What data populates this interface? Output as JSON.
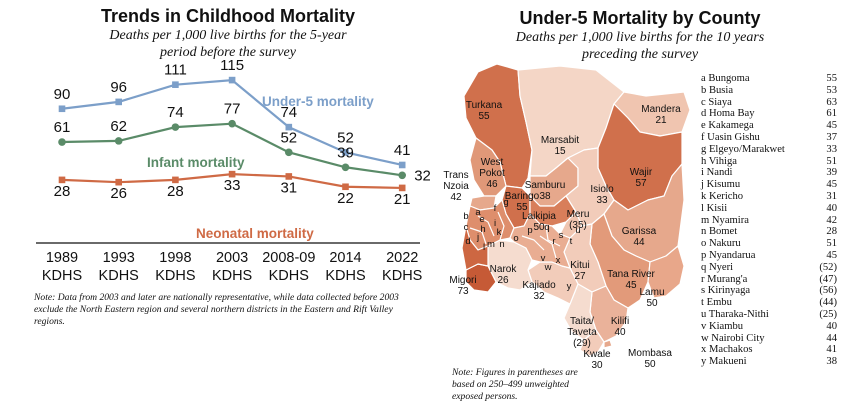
{
  "left_chart": {
    "title": "Trends in Childhood Mortality",
    "subtitle_line1": "Deaths per 1,000 live births for the 5-year",
    "subtitle_line2": "period before the survey",
    "note": "Note: Data from 2003 and later are nationally representative, while data collected before 2003 exclude the North Eastern region and several northern districts in the Eastern and Rift Valley regions."
  },
  "right_chart": {
    "title": "Under-5 Mortality by County",
    "subtitle_line1": "Deaths per 1,000 live births for the 10 years",
    "subtitle_line2": "preceding the survey",
    "note_line1": "Note: Figures in parentheses are",
    "note_line2": "based on 250–499 unweighted",
    "note_line3": "exposed persons."
  },
  "chart_data": [
    {
      "type": "line",
      "title": "Trends in Childhood Mortality",
      "categories": [
        {
          "year": "1989",
          "survey": "KDHS"
        },
        {
          "year": "1993",
          "survey": "KDHS"
        },
        {
          "year": "1998",
          "survey": "KDHS"
        },
        {
          "year": "2003",
          "survey": "KDHS"
        },
        {
          "year": "2008-09",
          "survey": "KDHS"
        },
        {
          "year": "2014",
          "survey": "KDHS"
        },
        {
          "year": "2022",
          "survey": "KDHS"
        }
      ],
      "series": [
        {
          "name": "Under-5 mortality",
          "color": "#7c9fc9",
          "values": [
            90,
            96,
            111,
            115,
            74,
            52,
            41
          ]
        },
        {
          "name": "Infant mortality",
          "color": "#5a8b68",
          "values": [
            61,
            62,
            74,
            77,
            52,
            39,
            32
          ]
        },
        {
          "name": "Neonatal mortality",
          "color": "#cf6a45",
          "values": [
            28,
            26,
            28,
            33,
            31,
            22,
            21
          ]
        }
      ],
      "ylim": [
        0,
        125
      ]
    },
    {
      "type": "choropleth-map",
      "title": "Under-5 Mortality by County",
      "map_labels": [
        {
          "name": "Turkana",
          "value": "55"
        },
        {
          "name": "Marsabit",
          "value": "15"
        },
        {
          "name": "Mandera",
          "value": "21"
        },
        {
          "name": "Wajir",
          "value": "57"
        },
        {
          "name": "West Pokot",
          "value": "46"
        },
        {
          "name": "Trans Nzoia",
          "value": "42"
        },
        {
          "name": "Samburu",
          "value": "38"
        },
        {
          "name": "Baringo",
          "value": "55"
        },
        {
          "name": "Isiolo",
          "value": "33"
        },
        {
          "name": "Laikipia",
          "value": "50"
        },
        {
          "name": "Meru",
          "value": "(35)"
        },
        {
          "name": "Garissa",
          "value": "44"
        },
        {
          "name": "Narok",
          "value": "26"
        },
        {
          "name": "Kitui",
          "value": "27"
        },
        {
          "name": "Kajiado",
          "value": "32"
        },
        {
          "name": "Migori",
          "value": "73"
        },
        {
          "name": "Tana River",
          "value": "45"
        },
        {
          "name": "Lamu",
          "value": "50"
        },
        {
          "name": "Taita/ Taveta",
          "value": "(29)"
        },
        {
          "name": "Kilifi",
          "value": "40"
        },
        {
          "name": "Kwale",
          "value": "30"
        },
        {
          "name": "Mombasa",
          "value": "50"
        }
      ],
      "letters": [
        "a",
        "b",
        "c",
        "d",
        "e",
        "f",
        "g",
        "h",
        "i",
        "j",
        "k",
        "l",
        "m",
        "n",
        "o",
        "p",
        "q",
        "r",
        "s",
        "t",
        "u",
        "v",
        "w",
        "x",
        "y"
      ],
      "legend": [
        {
          "label": "a Bungoma",
          "value": "55"
        },
        {
          "label": "b Busia",
          "value": "53"
        },
        {
          "label": "c Siaya",
          "value": "63"
        },
        {
          "label": "d Homa Bay",
          "value": "61"
        },
        {
          "label": "e Kakamega",
          "value": "45"
        },
        {
          "label": "f Uasin Gishu",
          "value": "37"
        },
        {
          "label": "g Elgeyo/Marakwet",
          "value": "33"
        },
        {
          "label": "h Vihiga",
          "value": "51"
        },
        {
          "label": "i Nandi",
          "value": "39"
        },
        {
          "label": "j Kisumu",
          "value": "45"
        },
        {
          "label": "k Kericho",
          "value": "31"
        },
        {
          "label": "l Kisii",
          "value": "40"
        },
        {
          "label": "m Nyamira",
          "value": "42"
        },
        {
          "label": "n Bomet",
          "value": "28"
        },
        {
          "label": "o Nakuru",
          "value": "51"
        },
        {
          "label": "p Nyandarua",
          "value": "45"
        },
        {
          "label": "q Nyeri",
          "value": "(52)"
        },
        {
          "label": "r Murang'a",
          "value": "(47)"
        },
        {
          "label": "s Kirinyaga",
          "value": "(56)"
        },
        {
          "label": "t Embu",
          "value": "(44)"
        },
        {
          "label": "u Tharaka-Nithi",
          "value": "(25)"
        },
        {
          "label": "v Kiambu",
          "value": "40"
        },
        {
          "label": "w Nairobi City",
          "value": "44"
        },
        {
          "label": "x Machakos",
          "value": "41"
        },
        {
          "label": "y Makueni",
          "value": "38"
        }
      ]
    }
  ]
}
